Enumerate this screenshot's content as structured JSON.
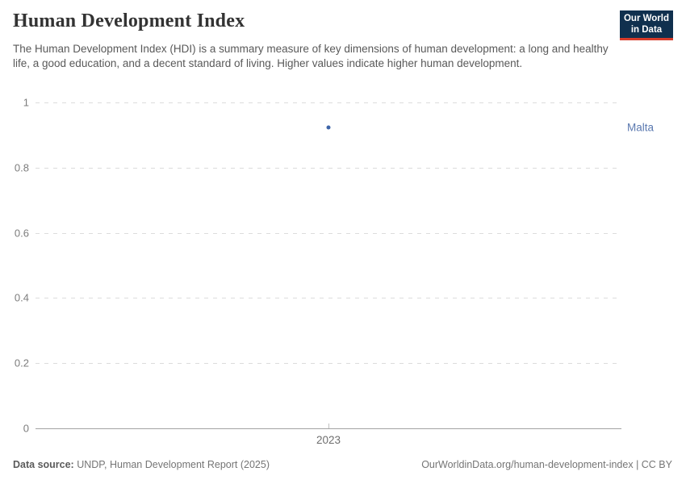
{
  "header": {
    "title": "Human Development Index",
    "subtitle": "The Human Development Index (HDI) is a summary measure of key dimensions of human development: a long and healthy life, a good education, and a decent standard of living. Higher values indicate higher human development.",
    "logo": {
      "line1": "Our World",
      "line2": "in Data",
      "bg_color": "#10304e",
      "accent_color": "#d73c2a"
    }
  },
  "chart_data": {
    "type": "scatter",
    "title": "Human Development Index",
    "x": [
      2023
    ],
    "series": [
      {
        "name": "Malta",
        "values": [
          0.924
        ],
        "point_color": "#3d64a8",
        "label_color": "#5b79b0"
      }
    ],
    "xlabel": "",
    "ylabel": "",
    "ylim": [
      0,
      1
    ],
    "yticks": [
      0,
      0.2,
      0.4,
      0.6,
      0.8,
      1
    ],
    "ytick_labels": [
      "0",
      "0.2",
      "0.4",
      "0.6",
      "0.8",
      "1"
    ],
    "xticks": [
      2023
    ],
    "xtick_labels": [
      "2023"
    ],
    "grid": "horizontal-dashed",
    "legend_position": "right-of-point"
  },
  "footer": {
    "source_label": "Data source:",
    "source_text": " UNDP, Human Development Report (2025)",
    "link_text": "OurWorldinData.org/human-development-index | CC BY"
  }
}
